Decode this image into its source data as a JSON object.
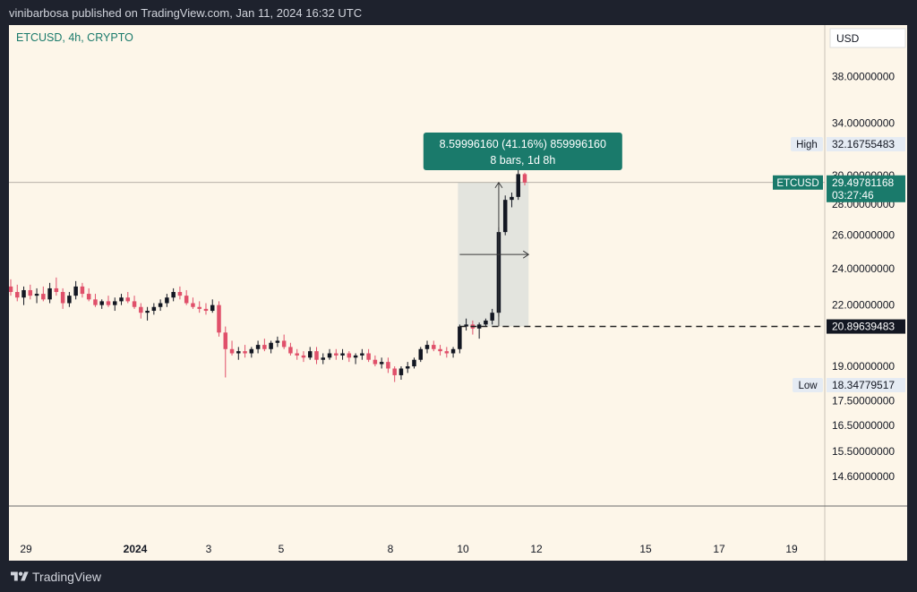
{
  "header": {
    "publisher_text": "vinibarbosa published on TradingView.com, Jan 11, 2024 16:32 UTC"
  },
  "footer": {
    "brand": "TradingView"
  },
  "colors": {
    "up": "#131722",
    "down": "#e0506a",
    "accent": "#1a7a6b",
    "background": "#fdf6e9",
    "frame": "#1e222d"
  },
  "chart_data": {
    "type": "candlestick",
    "symbol_label": "ETCUSD, 4h, CRYPTO",
    "currency": "USD",
    "y_scale": "log",
    "ylim": [
      13.6,
      43
    ],
    "y_ticks": [
      {
        "value": 38,
        "label": "38.00000000"
      },
      {
        "value": 34,
        "label": "34.00000000"
      },
      {
        "value": 30,
        "label": "30.00000000"
      },
      {
        "value": 28,
        "label": "28.00000000"
      },
      {
        "value": 26,
        "label": "26.00000000"
      },
      {
        "value": 24,
        "label": "24.00000000"
      },
      {
        "value": 22,
        "label": "22.00000000"
      },
      {
        "value": 19,
        "label": "19.00000000"
      },
      {
        "value": 17.5,
        "label": "17.50000000"
      },
      {
        "value": 16.5,
        "label": "16.50000000"
      },
      {
        "value": 15.5,
        "label": "15.50000000"
      },
      {
        "value": 14.6,
        "label": "14.60000000"
      }
    ],
    "x_ticks": [
      "29",
      "2024",
      "3",
      "5",
      "8",
      "10",
      "12",
      "15",
      "17",
      "19"
    ],
    "grid": false,
    "price_labels": {
      "high": {
        "label": "High",
        "value": "32.16755483"
      },
      "low": {
        "label": "Low",
        "value": "18.34779517"
      },
      "current": {
        "symbol": "ETCUSD",
        "value": "29.49781168",
        "countdown": "03:27:46",
        "price": 29.5
      },
      "level": {
        "value": "20.89639483",
        "price": 20.9
      }
    },
    "measure": {
      "line1": "8.59996160 (41.16%) 859996160",
      "line2": "8 bars, 1d 8h",
      "from_price": 20.9,
      "to_price": 29.5
    },
    "candles": [
      {
        "o": 23.0,
        "h": 23.4,
        "l": 22.5,
        "c": 22.7
      },
      {
        "o": 22.7,
        "h": 23.1,
        "l": 22.2,
        "c": 22.4
      },
      {
        "o": 22.4,
        "h": 23.0,
        "l": 22.0,
        "c": 22.8
      },
      {
        "o": 22.8,
        "h": 23.1,
        "l": 22.3,
        "c": 22.5
      },
      {
        "o": 22.5,
        "h": 22.9,
        "l": 22.1,
        "c": 22.6
      },
      {
        "o": 22.6,
        "h": 23.0,
        "l": 22.2,
        "c": 22.3
      },
      {
        "o": 22.3,
        "h": 23.2,
        "l": 22.1,
        "c": 22.9
      },
      {
        "o": 22.9,
        "h": 23.5,
        "l": 22.5,
        "c": 22.7
      },
      {
        "o": 22.7,
        "h": 22.9,
        "l": 21.8,
        "c": 22.1
      },
      {
        "o": 22.1,
        "h": 22.7,
        "l": 21.9,
        "c": 22.5
      },
      {
        "o": 22.5,
        "h": 23.3,
        "l": 22.3,
        "c": 23.0
      },
      {
        "o": 23.0,
        "h": 23.2,
        "l": 22.4,
        "c": 22.6
      },
      {
        "o": 22.6,
        "h": 22.9,
        "l": 22.2,
        "c": 22.3
      },
      {
        "o": 22.3,
        "h": 22.6,
        "l": 21.9,
        "c": 22.0
      },
      {
        "o": 22.0,
        "h": 22.3,
        "l": 21.8,
        "c": 22.2
      },
      {
        "o": 22.2,
        "h": 22.5,
        "l": 21.9,
        "c": 22.0
      },
      {
        "o": 22.0,
        "h": 22.4,
        "l": 21.7,
        "c": 22.2
      },
      {
        "o": 22.2,
        "h": 22.6,
        "l": 22.0,
        "c": 22.4
      },
      {
        "o": 22.4,
        "h": 22.7,
        "l": 22.1,
        "c": 22.2
      },
      {
        "o": 22.2,
        "h": 22.5,
        "l": 21.8,
        "c": 21.9
      },
      {
        "o": 21.9,
        "h": 22.1,
        "l": 21.3,
        "c": 21.6
      },
      {
        "o": 21.6,
        "h": 21.9,
        "l": 21.2,
        "c": 21.7
      },
      {
        "o": 21.7,
        "h": 22.1,
        "l": 21.5,
        "c": 21.9
      },
      {
        "o": 21.9,
        "h": 22.3,
        "l": 21.7,
        "c": 22.1
      },
      {
        "o": 22.1,
        "h": 22.6,
        "l": 21.9,
        "c": 22.4
      },
      {
        "o": 22.4,
        "h": 22.9,
        "l": 22.2,
        "c": 22.7
      },
      {
        "o": 22.7,
        "h": 23.0,
        "l": 22.3,
        "c": 22.5
      },
      {
        "o": 22.5,
        "h": 22.8,
        "l": 22.0,
        "c": 22.1
      },
      {
        "o": 22.1,
        "h": 22.4,
        "l": 21.8,
        "c": 21.9
      },
      {
        "o": 21.9,
        "h": 22.2,
        "l": 21.6,
        "c": 21.8
      },
      {
        "o": 21.8,
        "h": 22.1,
        "l": 21.5,
        "c": 21.7
      },
      {
        "o": 21.7,
        "h": 22.3,
        "l": 21.6,
        "c": 22.0
      },
      {
        "o": 22.0,
        "h": 22.2,
        "l": 20.4,
        "c": 20.6
      },
      {
        "o": 20.6,
        "h": 20.9,
        "l": 18.5,
        "c": 19.8
      },
      {
        "o": 19.8,
        "h": 20.2,
        "l": 19.5,
        "c": 19.6
      },
      {
        "o": 19.6,
        "h": 19.9,
        "l": 19.3,
        "c": 19.7
      },
      {
        "o": 19.7,
        "h": 20.0,
        "l": 19.4,
        "c": 19.6
      },
      {
        "o": 19.6,
        "h": 19.9,
        "l": 19.4,
        "c": 19.8
      },
      {
        "o": 19.8,
        "h": 20.2,
        "l": 19.6,
        "c": 20.0
      },
      {
        "o": 20.0,
        "h": 20.3,
        "l": 19.7,
        "c": 19.8
      },
      {
        "o": 19.8,
        "h": 20.2,
        "l": 19.6,
        "c": 20.1
      },
      {
        "o": 20.1,
        "h": 20.4,
        "l": 19.9,
        "c": 20.2
      },
      {
        "o": 20.2,
        "h": 20.5,
        "l": 19.8,
        "c": 19.9
      },
      {
        "o": 19.9,
        "h": 20.1,
        "l": 19.5,
        "c": 19.6
      },
      {
        "o": 19.6,
        "h": 19.8,
        "l": 19.3,
        "c": 19.5
      },
      {
        "o": 19.5,
        "h": 19.7,
        "l": 19.2,
        "c": 19.4
      },
      {
        "o": 19.4,
        "h": 19.9,
        "l": 19.3,
        "c": 19.7
      },
      {
        "o": 19.7,
        "h": 19.9,
        "l": 19.1,
        "c": 19.3
      },
      {
        "o": 19.3,
        "h": 19.6,
        "l": 19.1,
        "c": 19.4
      },
      {
        "o": 19.4,
        "h": 19.8,
        "l": 19.3,
        "c": 19.6
      },
      {
        "o": 19.6,
        "h": 19.8,
        "l": 19.3,
        "c": 19.5
      },
      {
        "o": 19.5,
        "h": 19.8,
        "l": 19.3,
        "c": 19.6
      },
      {
        "o": 19.6,
        "h": 19.7,
        "l": 19.2,
        "c": 19.4
      },
      {
        "o": 19.4,
        "h": 19.6,
        "l": 19.1,
        "c": 19.5
      },
      {
        "o": 19.5,
        "h": 19.8,
        "l": 19.3,
        "c": 19.6
      },
      {
        "o": 19.6,
        "h": 19.8,
        "l": 19.2,
        "c": 19.3
      },
      {
        "o": 19.3,
        "h": 19.5,
        "l": 19.0,
        "c": 19.1
      },
      {
        "o": 19.1,
        "h": 19.4,
        "l": 18.9,
        "c": 19.2
      },
      {
        "o": 19.2,
        "h": 19.4,
        "l": 18.7,
        "c": 18.9
      },
      {
        "o": 18.9,
        "h": 19.0,
        "l": 18.3,
        "c": 18.6
      },
      {
        "o": 18.6,
        "h": 19.0,
        "l": 18.4,
        "c": 18.9
      },
      {
        "o": 18.9,
        "h": 19.2,
        "l": 18.7,
        "c": 19.0
      },
      {
        "o": 19.0,
        "h": 19.4,
        "l": 18.9,
        "c": 19.3
      },
      {
        "o": 19.3,
        "h": 19.9,
        "l": 19.2,
        "c": 19.8
      },
      {
        "o": 19.8,
        "h": 20.2,
        "l": 19.6,
        "c": 20.0
      },
      {
        "o": 20.0,
        "h": 20.2,
        "l": 19.7,
        "c": 19.8
      },
      {
        "o": 19.8,
        "h": 20.0,
        "l": 19.5,
        "c": 19.7
      },
      {
        "o": 19.7,
        "h": 19.9,
        "l": 19.4,
        "c": 19.6
      },
      {
        "o": 19.6,
        "h": 19.9,
        "l": 19.4,
        "c": 19.8
      },
      {
        "o": 19.8,
        "h": 21.0,
        "l": 19.6,
        "c": 20.9
      },
      {
        "o": 20.9,
        "h": 21.3,
        "l": 20.7,
        "c": 21.0
      },
      {
        "o": 21.0,
        "h": 21.2,
        "l": 20.5,
        "c": 20.8
      },
      {
        "o": 20.8,
        "h": 21.1,
        "l": 20.3,
        "c": 21.0
      },
      {
        "o": 21.0,
        "h": 21.3,
        "l": 20.9,
        "c": 21.2
      },
      {
        "o": 21.2,
        "h": 21.8,
        "l": 21.0,
        "c": 21.6
      },
      {
        "o": 21.6,
        "h": 26.5,
        "l": 21.4,
        "c": 26.2
      },
      {
        "o": 26.2,
        "h": 28.6,
        "l": 26.0,
        "c": 28.3
      },
      {
        "o": 28.3,
        "h": 28.8,
        "l": 27.8,
        "c": 28.5
      },
      {
        "o": 28.5,
        "h": 32.2,
        "l": 28.3,
        "c": 30.1
      },
      {
        "o": 30.1,
        "h": 30.2,
        "l": 29.3,
        "c": 29.5
      }
    ]
  }
}
